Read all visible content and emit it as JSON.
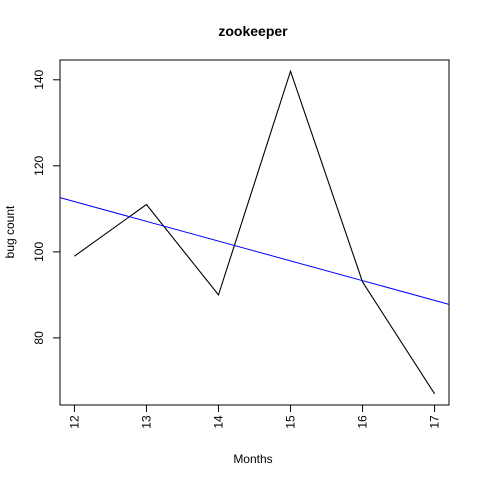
{
  "chart_data": {
    "type": "line",
    "title": "zookeeper",
    "xlabel": "Months",
    "ylabel": "bug count",
    "x": [
      12,
      13,
      14,
      15,
      16,
      17
    ],
    "series": [
      {
        "values": [
          99,
          111,
          90,
          142,
          93,
          67
        ],
        "color": "#000000"
      }
    ],
    "trend_line": {
      "x": [
        11.8,
        17.2
      ],
      "y": [
        112.6,
        87.8
      ],
      "color": "#0000ff"
    },
    "xlim": [
      11.8,
      17.2
    ],
    "ylim": [
      64.4,
      144.6
    ],
    "x_ticks": [
      12,
      13,
      14,
      15,
      16,
      17
    ],
    "y_ticks": [
      80,
      100,
      120,
      140
    ],
    "grid": false,
    "legend": "none"
  }
}
